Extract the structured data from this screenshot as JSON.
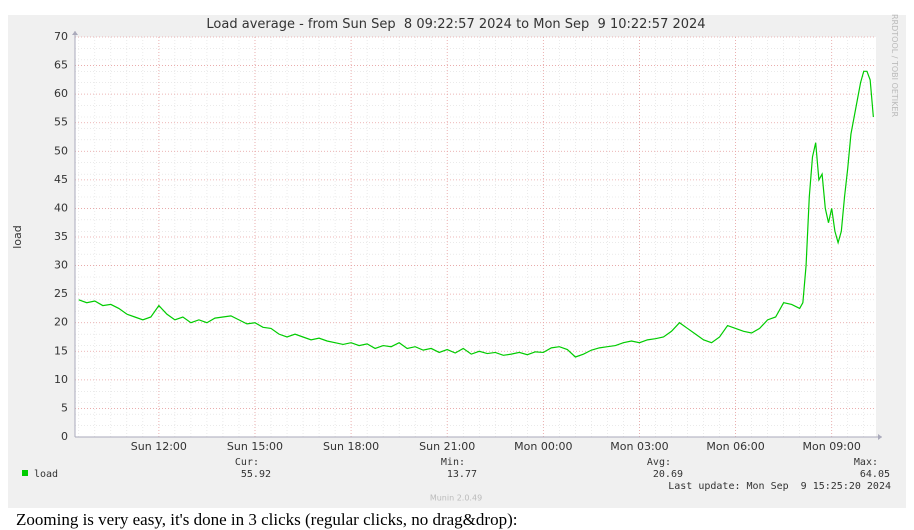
{
  "chart_data": {
    "type": "line",
    "title": "Load average - from Sun Sep  8 09:22:57 2024 to Mon Sep  9 10:22:57 2024",
    "y_label": "load",
    "watermark": "RRDTOOL / TOBI OETIKER",
    "x": [
      9.5,
      9.75,
      10,
      10.25,
      10.5,
      10.75,
      11,
      11.25,
      11.5,
      11.75,
      12,
      12.25,
      12.5,
      12.75,
      13,
      13.25,
      13.5,
      13.75,
      14,
      14.25,
      14.5,
      14.75,
      15,
      15.25,
      15.5,
      15.75,
      16,
      16.25,
      16.5,
      16.75,
      17,
      17.25,
      17.5,
      17.75,
      18,
      18.25,
      18.5,
      18.75,
      19,
      19.25,
      19.5,
      19.75,
      20,
      20.25,
      20.5,
      20.75,
      21,
      21.25,
      21.5,
      21.75,
      22,
      22.25,
      22.5,
      22.75,
      23,
      23.25,
      23.5,
      23.75,
      24,
      24.25,
      24.5,
      24.75,
      25,
      25.25,
      25.5,
      25.75,
      26,
      26.25,
      26.5,
      26.75,
      27,
      27.25,
      27.5,
      27.75,
      28,
      28.25,
      28.5,
      28.75,
      29,
      29.25,
      29.5,
      29.75,
      30,
      30.25,
      30.5,
      30.75,
      31,
      31.25,
      31.5,
      31.75,
      32,
      32.1,
      32.2,
      32.3,
      32.4,
      32.5,
      32.6,
      32.7,
      32.8,
      32.9,
      33,
      33.1,
      33.2,
      33.3,
      33.4,
      33.5,
      33.6,
      33.7,
      33.8,
      33.9,
      34,
      34.1,
      34.2,
      34.3
    ],
    "series": [
      {
        "name": "load",
        "color": "#00cc00",
        "values": [
          24,
          23.5,
          23.8,
          23,
          23.2,
          22.5,
          21.5,
          21,
          20.5,
          21,
          23,
          21.5,
          20.5,
          21,
          20,
          20.5,
          20,
          20.8,
          21,
          21.2,
          20.5,
          19.8,
          20,
          19.2,
          19,
          18,
          17.5,
          18,
          17.5,
          17,
          17.3,
          16.8,
          16.5,
          16.2,
          16.5,
          16,
          16.3,
          15.5,
          16,
          15.8,
          16.5,
          15.5,
          15.8,
          15.2,
          15.5,
          14.8,
          15.3,
          14.7,
          15.5,
          14.5,
          15,
          14.6,
          14.8,
          14.3,
          14.5,
          14.8,
          14.4,
          14.9,
          14.8,
          15.6,
          15.8,
          15.3,
          14,
          14.5,
          15.2,
          15.6,
          15.8,
          16,
          16.5,
          16.8,
          16.5,
          17,
          17.2,
          17.5,
          18.5,
          20,
          19,
          18,
          17,
          16.5,
          17.5,
          19.5,
          19,
          18.5,
          18.2,
          19,
          20.5,
          21,
          23.5,
          23.2,
          22.5,
          23.5,
          30,
          42,
          49,
          51.5,
          45,
          46,
          40,
          37.5,
          40,
          36,
          34,
          36,
          42,
          47,
          53,
          56,
          59,
          62,
          64,
          64,
          62.5,
          56
        ]
      }
    ],
    "xlim": [
      9.3825,
      34.3825
    ],
    "xticks": [
      {
        "value": 12,
        "label": "Sun 12:00"
      },
      {
        "value": 15,
        "label": "Sun 15:00"
      },
      {
        "value": 18,
        "label": "Sun 18:00"
      },
      {
        "value": 21,
        "label": "Sun 21:00"
      },
      {
        "value": 24,
        "label": "Mon 00:00"
      },
      {
        "value": 27,
        "label": "Mon 03:00"
      },
      {
        "value": 30,
        "label": "Mon 06:00"
      },
      {
        "value": 33,
        "label": "Mon 09:00"
      }
    ],
    "ylim": [
      0,
      70
    ],
    "yticks": [
      0,
      5,
      10,
      15,
      20,
      25,
      30,
      35,
      40,
      45,
      50,
      55,
      60,
      65,
      70
    ],
    "grid": true,
    "stats": [
      {
        "label": "Cur:",
        "value": 55.92
      },
      {
        "label": "Min:",
        "value": 13.77
      },
      {
        "label": "Avg:",
        "value": 20.69
      },
      {
        "label": "Max:",
        "value": 64.05
      }
    ],
    "last_update": "Last update: Mon Sep  9 15:25:20 2024",
    "footer": "Munin 2.0.49"
  },
  "page_text": "Zooming is very easy, it's done in 3 clicks (regular clicks, no drag&drop):"
}
